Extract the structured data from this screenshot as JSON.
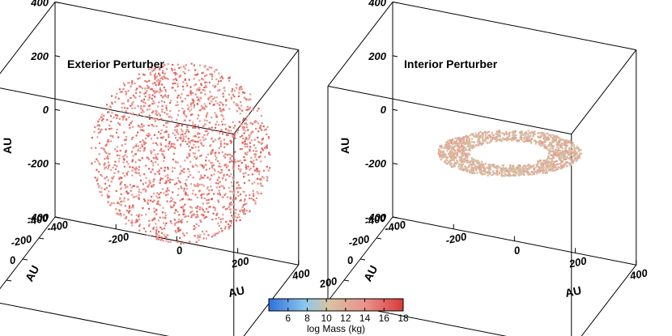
{
  "chart_data": [
    {
      "type": "scatter",
      "title": "Exterior Perturber",
      "projection": "3d",
      "xlabel": "AU",
      "ylabel": "AU",
      "zlabel": "AU",
      "xlim": [
        -400,
        400
      ],
      "ylim": [
        -400,
        400
      ],
      "zlim": [
        -400,
        400
      ],
      "xticks": [
        "-400",
        "-200",
        "0",
        "200",
        "400"
      ],
      "yticks": [
        "-400",
        "-200",
        "0",
        "200",
        "400"
      ],
      "zticks": [
        "-400",
        "-200",
        "0",
        "200",
        "400"
      ],
      "grid": false,
      "distribution": {
        "shape": "disk seen face-on",
        "inner_radius_au": 20,
        "outer_radius_au": 280,
        "color_by": "log Mass (kg)",
        "dominant_log_mass": 15
      }
    },
    {
      "type": "scatter",
      "title": "Interior Perturber",
      "projection": "3d",
      "xlabel": "AU",
      "ylabel": "AU",
      "zlabel": "AU",
      "xlim": [
        -400,
        400
      ],
      "ylim": [
        -400,
        400
      ],
      "zlim": [
        -400,
        400
      ],
      "xticks": [
        "-400",
        "-200",
        "0",
        "200",
        "400"
      ],
      "yticks": [
        "-400",
        "-200",
        "0",
        "200",
        "400"
      ],
      "zticks": [
        "-400",
        "-200",
        "0",
        "200",
        "400"
      ],
      "grid": false,
      "distribution": {
        "shape": "flat ring in x-y plane",
        "inner_radius_au": 180,
        "outer_radius_au": 330,
        "color_by": "log Mass (kg)",
        "dominant_log_mass": 12
      }
    }
  ],
  "colorbar": {
    "label": "log Mass (kg)",
    "ticks": [
      "6",
      "8",
      "10",
      "12",
      "14",
      "16",
      "18"
    ],
    "range": [
      4,
      18
    ],
    "colors": [
      "#2f6fdd",
      "#8cc8ec",
      "#d8c2a0",
      "#e8928c",
      "#d93a3a"
    ]
  }
}
